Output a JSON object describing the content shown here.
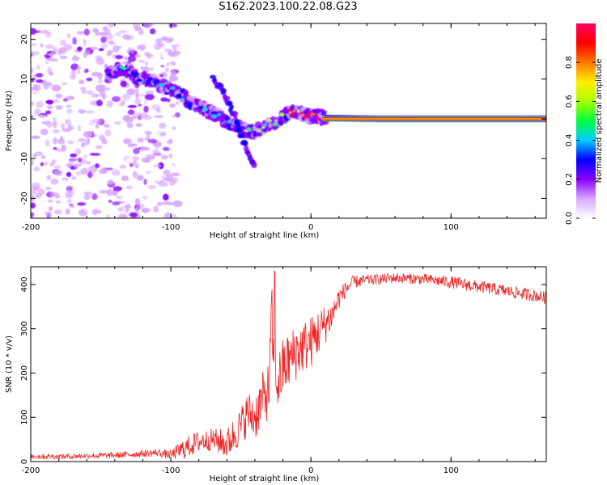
{
  "title": "S162.2023.100.22.08.G23",
  "chart_data": [
    {
      "type": "heatmap",
      "xlabel": "Height of straight line (km)",
      "ylabel": "Frequency (Hz)",
      "xlim": [
        -200,
        168
      ],
      "ylim": [
        -25,
        24
      ],
      "x_ticks": [
        -200,
        -100,
        0,
        100
      ],
      "y_ticks": [
        -20,
        -10,
        0,
        10,
        20
      ],
      "colorbar": {
        "label": "Normalized spectral amplitude",
        "range": [
          0,
          1
        ],
        "ticks": [
          0.0,
          0.2,
          0.4,
          0.6,
          0.8
        ],
        "colormap": [
          "#ffffff",
          "#d8a8ff",
          "#8800ff",
          "#0000ff",
          "#00ccff",
          "#00ff44",
          "#aaff00",
          "#ffee00",
          "#ff7700",
          "#ff0000",
          "#ff0066"
        ]
      },
      "ridge": {
        "name": "dominant frequency",
        "x": [
          -145,
          -135,
          -125,
          -115,
          -105,
          -95,
          -85,
          -75,
          -65,
          -55,
          -45,
          -40,
          -35,
          -30,
          -25,
          -20,
          -15,
          -10,
          -5,
          0,
          5,
          10,
          50,
          100,
          168
        ],
        "y": [
          11,
          13,
          10.5,
          9.5,
          8.5,
          6.5,
          4,
          2,
          0.5,
          -1.5,
          -3,
          -3.5,
          -2.5,
          -1.5,
          -0.5,
          0.5,
          1.5,
          2,
          1,
          0.8,
          0.5,
          0.2,
          0,
          0,
          0
        ],
        "amplitude": [
          0.25,
          0.35,
          0.3,
          0.3,
          0.3,
          0.3,
          0.3,
          0.3,
          0.3,
          0.3,
          0.35,
          0.4,
          0.45,
          0.5,
          0.55,
          0.6,
          0.7,
          0.8,
          0.85,
          0.9,
          0.95,
          1.0,
          1.0,
          1.0,
          1.0
        ]
      },
      "secondary_ridge": {
        "x": [
          -70,
          -65,
          -60,
          -55,
          -50,
          -45,
          -40
        ],
        "y": [
          10,
          8,
          5,
          1,
          -4,
          -8,
          -12
        ]
      },
      "noise_region_x": [
        -200,
        -120
      ]
    },
    {
      "type": "line",
      "xlabel": "Height of straight line (km)",
      "ylabel": "SNR (10 * v/v)",
      "xlim": [
        -200,
        168
      ],
      "ylim": [
        0,
        440
      ],
      "x_ticks": [
        -200,
        -100,
        0,
        100
      ],
      "y_ticks": [
        0,
        100,
        200,
        300,
        400
      ],
      "line_color": "#ee2222",
      "series": [
        {
          "name": "",
          "x": [
            -200,
            -180,
            -160,
            -140,
            -120,
            -110,
            -100,
            -90,
            -80,
            -70,
            -60,
            -55,
            -50,
            -45,
            -40,
            -35,
            -30,
            -28,
            -26,
            -24,
            -22,
            -20,
            -15,
            -10,
            -5,
            0,
            5,
            10,
            15,
            20,
            25,
            30,
            40,
            50,
            60,
            80,
            100,
            120,
            140,
            160,
            168
          ],
          "y": [
            12,
            11,
            13,
            14,
            18,
            20,
            15,
            30,
            45,
            50,
            40,
            60,
            80,
            110,
            100,
            140,
            160,
            330,
            170,
            180,
            190,
            210,
            230,
            250,
            260,
            270,
            290,
            310,
            330,
            370,
            390,
            405,
            410,
            412,
            415,
            412,
            405,
            395,
            385,
            375,
            370
          ],
          "noise_amplitude": [
            6,
            6,
            6,
            7,
            8,
            9,
            10,
            25,
            25,
            25,
            35,
            40,
            45,
            50,
            55,
            60,
            65,
            80,
            70,
            70,
            70,
            70,
            65,
            65,
            60,
            60,
            55,
            45,
            35,
            25,
            18,
            15,
            12,
            12,
            12,
            12,
            14,
            14,
            14,
            14,
            14
          ]
        }
      ]
    }
  ]
}
